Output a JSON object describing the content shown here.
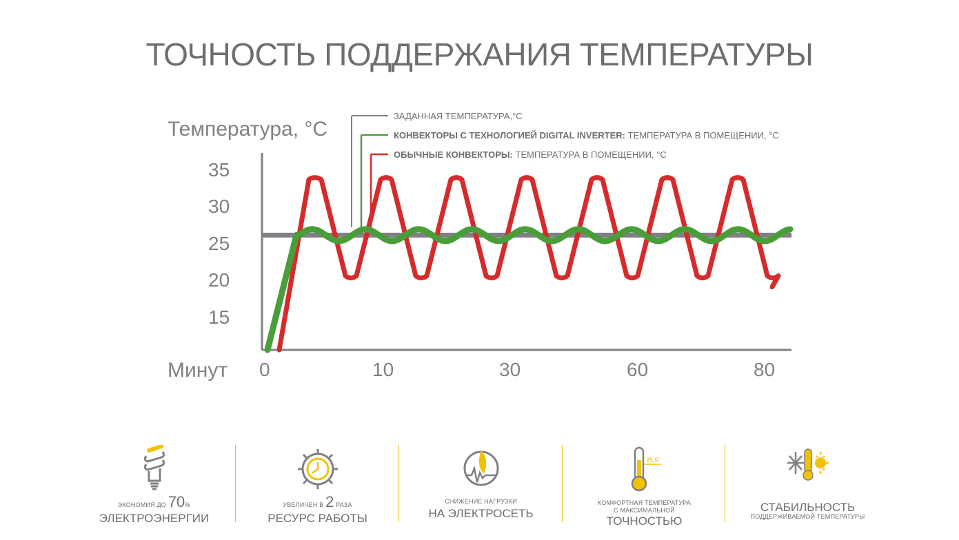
{
  "title": "ТОЧНОСТЬ ПОДДЕРЖАНИЯ ТЕМПЕРАТУРЫ",
  "chart_data": {
    "type": "line",
    "ylabel": "Температура, °С",
    "xlabel": "Минут",
    "y_ticks": [
      "35",
      "30",
      "25",
      "20",
      "15"
    ],
    "x_ticks": [
      "0",
      "10",
      "30",
      "60",
      "80"
    ],
    "ylim": [
      10,
      37
    ],
    "legend": [
      {
        "bold": "",
        "text": "ЗАДАННАЯ ТЕМПЕРАТУРА,°С",
        "color": "#808184"
      },
      {
        "bold": "КОНВЕКТОРЫ С ТЕХНОЛОГИЕЙ DIGITAL INVERTER:",
        "text": " ТЕМПЕРАТУРА В ПОМЕЩЕНИИ, °С",
        "color": "#4a9e3a"
      },
      {
        "bold": "ОБЫЧНЫЕ КОНВЕКТОРЫ:",
        "text": " ТЕМПЕРАТУРА В ПОМЕЩЕНИИ, °С",
        "color": "#d62b2b"
      }
    ],
    "series": [
      {
        "name": "ЗАДАННАЯ ТЕМПЕРАТУРА,°С",
        "type": "constant",
        "value": 25.5,
        "color": "#808184"
      },
      {
        "name": "КОНВЕКТОРЫ С ТЕХНОЛОГИЕЙ DIGITAL INVERTER",
        "color": "#4a9e3a",
        "rise_from": 10,
        "mean": 25.5,
        "amplitude": 0.8,
        "cycles": 9.3
      },
      {
        "name": "ОБЫЧНЫЕ КОНВЕКТОРЫ",
        "color": "#d62b2b",
        "rise_from": 10,
        "max": 33,
        "min": 20,
        "cycles": 7
      }
    ]
  },
  "features": [
    {
      "pre": "ЭКОНОМИЯ ДО ",
      "num": "70",
      "post": "%",
      "main": "ЭЛЕКТРОЭНЕРГИИ",
      "icon": "bulb-icon"
    },
    {
      "pre": "УВЕЛИЧЕН В ",
      "num": "2",
      "post": " РАЗА",
      "main": "РЕСУРС РАБОТЫ",
      "icon": "gear-clock-icon"
    },
    {
      "pre": "СНИЖЕНИЕ НАГРУЗКИ",
      "main": "НА ЭЛЕКТРОСЕТЬ",
      "icon": "feather-pulse-icon"
    },
    {
      "pre": "КОМФОРТНАЯ ТЕМПЕРАТУРА",
      "pre2": "С МАКСИМАЛЬНОЙ",
      "main": "ТОЧНОСТЬЮ",
      "thermo_label": "25.5°",
      "icon": "thermometer-icon"
    },
    {
      "main": "СТАБИЛЬНОСТЬ",
      "sub": "ПОДДЕРЖИВАЕМОЙ ТЕМПЕРАТУРЫ",
      "icon": "snow-sun-thermometer-icon"
    }
  ],
  "colors": {
    "accent": "#f2c200",
    "gray": "#808184",
    "green": "#4a9e3a",
    "red": "#d62b2b"
  }
}
